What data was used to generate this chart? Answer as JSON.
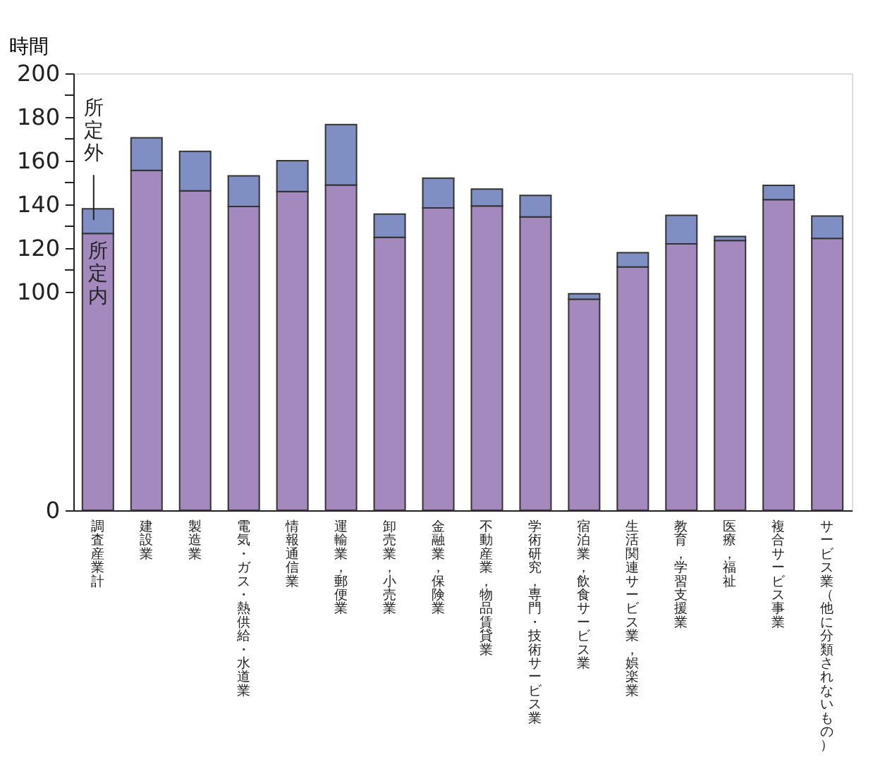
{
  "chart_data": {
    "type": "bar",
    "stacked": true,
    "ylabel": "時間",
    "categories": [
      "調査産業計",
      "建設業",
      "製造業",
      "電気・ガス・熱供給・水道業",
      "情報通信業",
      "運輸業，郵便業",
      "卸売業，小売業",
      "金融業，保険業",
      "不動産業，物品賃貸業",
      "学術研究，専門・技術サービス業",
      "宿泊業，飲食サービス業",
      "生活関連サービス業，娯楽業",
      "教育，学習支援業",
      "医療，福祉",
      "複合サービス事業",
      "サービス業（他に分類されないもの）"
    ],
    "series": [
      {
        "name": "所定内",
        "color": "#a389bd",
        "values": [
          126.7,
          155.6,
          146.2,
          139.0,
          145.9,
          148.9,
          124.9,
          138.4,
          139.3,
          134.3,
          96.6,
          111.4,
          121.9,
          123.5,
          142.2,
          124.4
        ]
      },
      {
        "name": "所定外",
        "color": "#7f8fc4",
        "values": [
          11.3,
          14.9,
          18.1,
          14.1,
          14.1,
          27.6,
          10.7,
          13.6,
          7.7,
          9.8,
          2.5,
          6.5,
          13.1,
          1.8,
          6.5,
          10.3
        ]
      }
    ],
    "ylim": [
      0,
      200
    ],
    "yticks": [
      0,
      100,
      {
        "value": 110,
        "label": null
      },
      120,
      {
        "value": 130,
        "label": null
      },
      140,
      {
        "value": 150,
        "label": null
      },
      160,
      {
        "value": 170,
        "label": null
      },
      180,
      {
        "value": 190,
        "label": null
      },
      200
    ]
  }
}
